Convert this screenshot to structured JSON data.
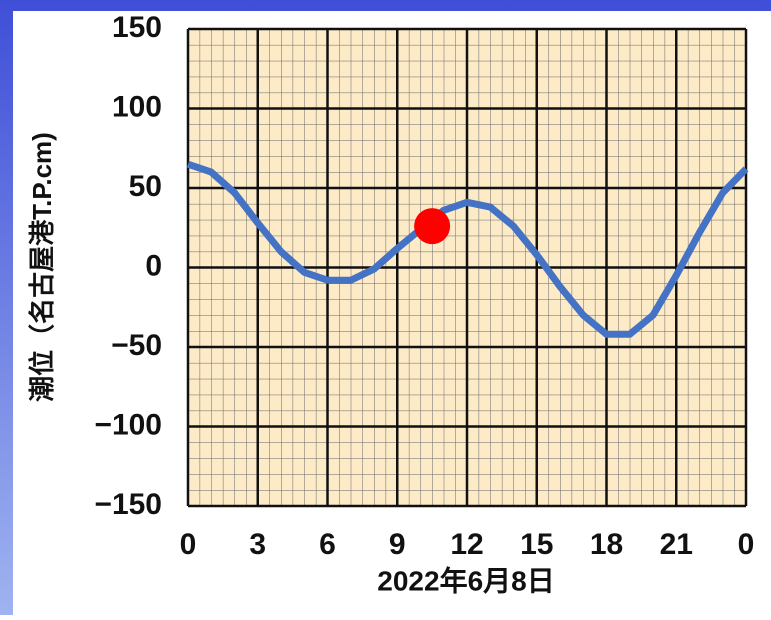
{
  "chart_data": {
    "type": "line",
    "xlabel": "2022年6月8日",
    "ylabel": "潮位（名古屋港T.P.cm)",
    "x": [
      0,
      1,
      2,
      3,
      4,
      5,
      6,
      7,
      8,
      9,
      10,
      11,
      12,
      13,
      14,
      15,
      16,
      17,
      18,
      19,
      20,
      21,
      22,
      23,
      24
    ],
    "series": [
      {
        "name": "潮位",
        "color": "#4472c4",
        "values": [
          65,
          60,
          47,
          28,
          10,
          -3,
          -8,
          -8,
          -1,
          12,
          24,
          36,
          41,
          38,
          26,
          8,
          -12,
          -30,
          -42,
          -42,
          -30,
          -5,
          22,
          47,
          62
        ]
      }
    ],
    "current": {
      "x": 10.5,
      "y": 26,
      "color": "#ff0000"
    },
    "xlim": [
      0,
      24
    ],
    "xticks": [
      0,
      3,
      6,
      9,
      12,
      15,
      18,
      21,
      {
        "value": 24,
        "label": "0"
      }
    ],
    "ylim": [
      -150,
      150
    ],
    "yticks": [
      {
        "value": -150,
        "label": "−150"
      },
      {
        "value": -100,
        "label": "−100"
      },
      {
        "value": -50,
        "label": "−50"
      },
      0,
      50,
      100,
      150
    ],
    "grid": true
  }
}
